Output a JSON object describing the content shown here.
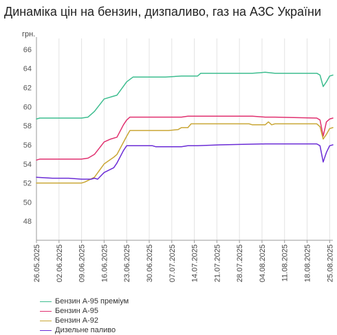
{
  "title": "Динаміка цін на бензин, дизпаливо, газ на АЗС України",
  "chart_data": {
    "type": "line",
    "title": "Динаміка цін на бензин, дизпаливо, газ на АЗС України",
    "ylabel": "грн.",
    "xlabel": "",
    "ylim": [
      46,
      67
    ],
    "yticks": [
      48,
      50,
      52,
      54,
      56,
      58,
      60,
      62,
      64,
      66
    ],
    "xlim": [
      "2025-05-26",
      "2025-08-26"
    ],
    "xticks": [
      "26.05.2025",
      "02.06.2025",
      "09.06.2025",
      "16.06.2025",
      "23.06.2025",
      "30.06.2025",
      "07.07.2025",
      "14.07.2025",
      "21.07.2025",
      "28.07.2025",
      "04.08.2025",
      "11.08.2025",
      "18.08.2025",
      "25.08.2025"
    ],
    "grid": "vertical",
    "legend": "bottom-left",
    "series": [
      {
        "name": "Бензин А-95 преміум",
        "color": "#3dbd8f",
        "x": [
          "2025-05-26",
          "2025-05-27",
          "2025-06-05",
          "2025-06-09",
          "2025-06-11",
          "2025-06-13",
          "2025-06-16",
          "2025-06-19",
          "2025-06-20",
          "2025-06-23",
          "2025-06-25",
          "2025-07-05",
          "2025-07-10",
          "2025-07-12",
          "2025-07-15",
          "2025-07-16",
          "2025-08-01",
          "2025-08-05",
          "2025-08-08",
          "2025-08-21",
          "2025-08-22",
          "2025-08-23",
          "2025-08-24",
          "2025-08-25",
          "2025-08-26"
        ],
        "values": [
          58.7,
          58.8,
          58.8,
          58.8,
          58.9,
          59.5,
          60.8,
          61.1,
          61.2,
          62.6,
          63.1,
          63.1,
          63.2,
          63.2,
          63.2,
          63.5,
          63.5,
          63.6,
          63.5,
          63.5,
          63.3,
          62.1,
          62.6,
          63.2,
          63.3
        ]
      },
      {
        "name": "Бензин А-95",
        "color": "#e0306f",
        "x": [
          "2025-05-26",
          "2025-05-27",
          "2025-06-01",
          "2025-06-09",
          "2025-06-11",
          "2025-06-13",
          "2025-06-16",
          "2025-06-18",
          "2025-06-20",
          "2025-06-22",
          "2025-06-23",
          "2025-06-24",
          "2025-07-10",
          "2025-07-12",
          "2025-08-01",
          "2025-08-05",
          "2025-08-08",
          "2025-08-21",
          "2025-08-22",
          "2025-08-23",
          "2025-08-24",
          "2025-08-25",
          "2025-08-26"
        ],
        "values": [
          54.4,
          54.5,
          54.5,
          54.5,
          54.6,
          55.0,
          56.3,
          56.6,
          56.8,
          58.1,
          58.6,
          58.9,
          58.9,
          59.0,
          59.0,
          58.9,
          58.9,
          58.8,
          58.6,
          56.9,
          58.4,
          58.7,
          58.8
        ]
      },
      {
        "name": "Бензин А-92",
        "color": "#c9a635",
        "x": [
          "2025-05-26",
          "2025-06-09",
          "2025-06-10",
          "2025-06-13",
          "2025-06-16",
          "2025-06-19",
          "2025-06-20",
          "2025-06-23",
          "2025-06-24",
          "2025-07-05",
          "2025-07-06",
          "2025-07-09",
          "2025-07-10",
          "2025-07-12",
          "2025-07-13",
          "2025-07-31",
          "2025-08-01",
          "2025-08-05",
          "2025-08-06",
          "2025-08-07",
          "2025-08-08",
          "2025-08-21",
          "2025-08-22",
          "2025-08-23",
          "2025-08-24",
          "2025-08-25",
          "2025-08-26"
        ],
        "values": [
          52.0,
          52.0,
          52.1,
          52.6,
          54.0,
          54.7,
          55.0,
          56.9,
          57.5,
          57.5,
          57.5,
          57.6,
          57.8,
          57.8,
          58.2,
          58.2,
          58.1,
          58.1,
          58.4,
          58.1,
          58.2,
          58.2,
          57.9,
          56.6,
          57.1,
          57.7,
          57.8
        ]
      },
      {
        "name": "Дизельне паливо",
        "color": "#6a2bd6",
        "x": [
          "2025-05-26",
          "2025-05-31",
          "2025-06-05",
          "2025-06-09",
          "2025-06-12",
          "2025-06-13",
          "2025-06-14",
          "2025-06-16",
          "2025-06-19",
          "2025-06-20",
          "2025-06-22",
          "2025-06-23",
          "2025-06-24",
          "2025-07-01",
          "2025-07-02",
          "2025-07-10",
          "2025-07-12",
          "2025-07-15",
          "2025-07-22",
          "2025-08-05",
          "2025-08-21",
          "2025-08-22",
          "2025-08-23",
          "2025-08-24",
          "2025-08-25",
          "2025-08-26"
        ],
        "values": [
          52.6,
          52.5,
          52.5,
          52.4,
          52.4,
          52.5,
          52.4,
          53.1,
          53.6,
          54.1,
          55.4,
          55.9,
          55.9,
          55.9,
          55.8,
          55.8,
          55.9,
          55.9,
          56.0,
          56.1,
          56.1,
          55.9,
          54.2,
          55.2,
          55.9,
          56.0
        ]
      }
    ]
  }
}
